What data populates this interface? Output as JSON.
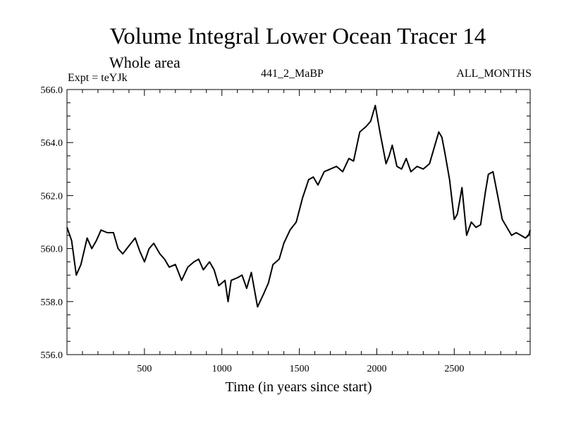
{
  "chart_data": {
    "type": "line",
    "title": "Volume Integral Lower Ocean Tracer 14",
    "subtitle": "Whole area",
    "expt_label": "Expt = teYJk",
    "run_label": "441_2_MaBP",
    "months_label": "ALL_MONTHS",
    "xlabel": "Time (in years since start)",
    "ylabel": "",
    "xlim": [
      0,
      2990
    ],
    "ylim": [
      556.0,
      566.0
    ],
    "xticks": [
      500,
      1000,
      1500,
      2000,
      2500
    ],
    "xtick_labels": [
      "500",
      "1000",
      "1500",
      "2000",
      "2500"
    ],
    "yticks": [
      556.0,
      558.0,
      560.0,
      562.0,
      564.0,
      566.0
    ],
    "ytick_labels": [
      "556.0",
      "558.0",
      "560.0",
      "562.0",
      "564.0",
      "566.0"
    ],
    "series": [
      {
        "name": "Tracer 14",
        "color": "#000000",
        "x": [
          0,
          30,
          60,
          90,
          130,
          160,
          190,
          220,
          260,
          300,
          330,
          360,
          400,
          440,
          470,
          500,
          530,
          560,
          600,
          630,
          660,
          700,
          740,
          780,
          820,
          850,
          880,
          920,
          950,
          980,
          1020,
          1040,
          1060,
          1100,
          1130,
          1160,
          1190,
          1230,
          1270,
          1300,
          1330,
          1370,
          1400,
          1440,
          1480,
          1520,
          1560,
          1590,
          1620,
          1660,
          1700,
          1740,
          1780,
          1820,
          1850,
          1890,
          1930,
          1960,
          1990,
          2020,
          2060,
          2080,
          2100,
          2130,
          2160,
          2190,
          2220,
          2260,
          2300,
          2340,
          2370,
          2400,
          2420,
          2440,
          2470,
          2500,
          2520,
          2550,
          2580,
          2610,
          2640,
          2670,
          2700,
          2720,
          2750,
          2780,
          2810,
          2840,
          2870,
          2900,
          2930,
          2960,
          2980,
          2990
        ],
        "y": [
          560.8,
          560.3,
          559.0,
          559.4,
          560.4,
          560.0,
          560.3,
          560.7,
          560.6,
          560.6,
          560.0,
          559.8,
          560.1,
          560.4,
          559.9,
          559.5,
          560.0,
          560.2,
          559.8,
          559.6,
          559.3,
          559.4,
          558.8,
          559.3,
          559.5,
          559.6,
          559.2,
          559.5,
          559.2,
          558.6,
          558.8,
          558.0,
          558.8,
          558.9,
          559.0,
          558.5,
          559.1,
          557.8,
          558.3,
          558.7,
          559.4,
          559.6,
          560.2,
          560.7,
          561.0,
          561.9,
          562.6,
          562.7,
          562.4,
          562.9,
          563.0,
          563.1,
          562.9,
          563.4,
          563.3,
          564.4,
          564.6,
          564.8,
          565.4,
          564.4,
          563.2,
          563.5,
          563.9,
          563.1,
          563.0,
          563.4,
          562.9,
          563.1,
          563.0,
          563.2,
          563.8,
          564.4,
          564.2,
          563.6,
          562.6,
          561.1,
          561.3,
          562.3,
          560.5,
          561.0,
          560.8,
          560.9,
          562.1,
          562.8,
          562.9,
          562.0,
          561.1,
          560.8,
          560.5,
          560.6,
          560.5,
          560.4,
          560.5,
          560.7
        ]
      }
    ]
  }
}
